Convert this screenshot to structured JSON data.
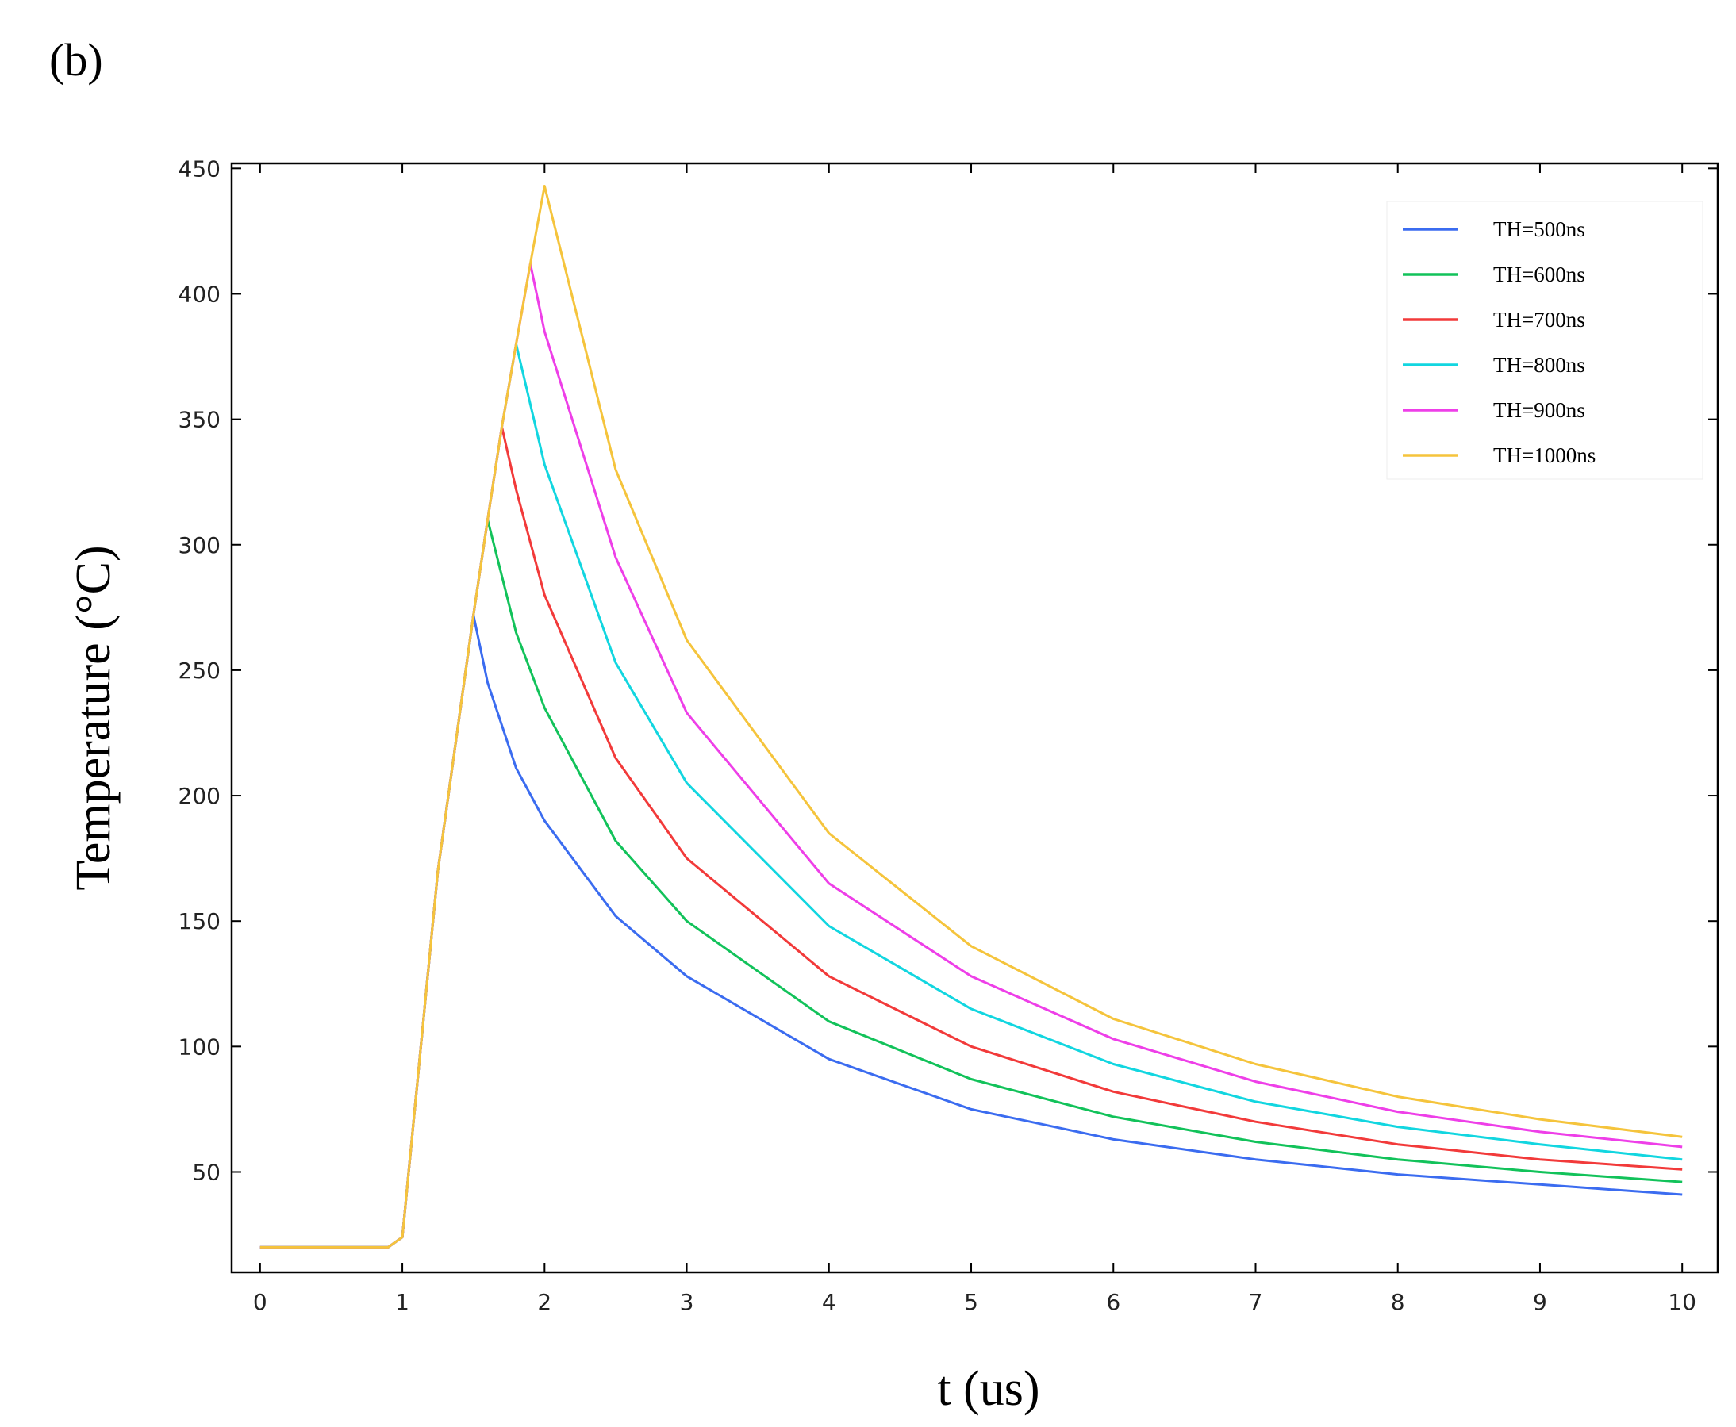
{
  "panel_label": "(b)",
  "chart_data": {
    "type": "line",
    "title": "",
    "xlabel": "t (us)",
    "ylabel": "Temperature (°C)",
    "xlim": [
      -0.2,
      10.25
    ],
    "ylim": [
      10,
      452
    ],
    "x_ticks": [
      0,
      1,
      2,
      3,
      4,
      5,
      6,
      7,
      8,
      9,
      10
    ],
    "y_ticks": [
      50,
      100,
      150,
      200,
      250,
      300,
      350,
      400,
      450
    ],
    "x_tick_labels": [
      "0",
      "1",
      "2",
      "3",
      "4",
      "5",
      "6",
      "7",
      "8",
      "9",
      "10"
    ],
    "y_tick_labels": [
      "50",
      "100",
      "150",
      "200",
      "250",
      "300",
      "350",
      "400",
      "450"
    ],
    "grid": false,
    "legend_position": "top-right",
    "series": [
      {
        "name": "TH=500ns",
        "color": "#3b6cf0",
        "x": [
          0,
          0.9,
          1.0,
          1.25,
          1.5,
          1.6,
          1.8,
          2.0,
          2.5,
          3.0,
          4.0,
          5.0,
          6.0,
          7.0,
          8.0,
          9.0,
          10.0
        ],
        "y": [
          20,
          20,
          24,
          170,
          272,
          245,
          211,
          190,
          152,
          128,
          95,
          75,
          63,
          55,
          49,
          45,
          41
        ]
      },
      {
        "name": "TH=600ns",
        "color": "#12c25a",
        "x": [
          0,
          0.9,
          1.0,
          1.25,
          1.5,
          1.6,
          1.8,
          2.0,
          2.5,
          3.0,
          4.0,
          5.0,
          6.0,
          7.0,
          8.0,
          9.0,
          10.0
        ],
        "y": [
          20,
          20,
          24,
          170,
          272,
          310,
          265,
          235,
          182,
          150,
          110,
          87,
          72,
          62,
          55,
          50,
          46
        ]
      },
      {
        "name": "TH=700ns",
        "color": "#f23a3a",
        "x": [
          0,
          0.9,
          1.0,
          1.25,
          1.5,
          1.6,
          1.7,
          1.8,
          2.0,
          2.5,
          3.0,
          4.0,
          5.0,
          6.0,
          7.0,
          8.0,
          9.0,
          10.0
        ],
        "y": [
          20,
          20,
          24,
          170,
          272,
          310,
          347,
          322,
          280,
          215,
          175,
          128,
          100,
          82,
          70,
          61,
          55,
          51
        ]
      },
      {
        "name": "TH=800ns",
        "color": "#12d6e0",
        "x": [
          0,
          0.9,
          1.0,
          1.25,
          1.5,
          1.6,
          1.7,
          1.8,
          1.9,
          2.0,
          2.5,
          3.0,
          4.0,
          5.0,
          6.0,
          7.0,
          8.0,
          9.0,
          10.0
        ],
        "y": [
          20,
          20,
          24,
          170,
          272,
          310,
          347,
          380,
          356,
          332,
          253,
          205,
          148,
          115,
          93,
          78,
          68,
          61,
          55
        ]
      },
      {
        "name": "TH=900ns",
        "color": "#ee3fe8",
        "x": [
          0,
          0.9,
          1.0,
          1.25,
          1.5,
          1.6,
          1.7,
          1.8,
          1.9,
          2.0,
          2.5,
          3.0,
          4.0,
          5.0,
          6.0,
          7.0,
          8.0,
          9.0,
          10.0
        ],
        "y": [
          20,
          20,
          24,
          170,
          272,
          310,
          347,
          380,
          412,
          385,
          295,
          233,
          165,
          128,
          103,
          86,
          74,
          66,
          60
        ]
      },
      {
        "name": "TH=1000ns",
        "color": "#f5c43c",
        "x": [
          0,
          0.9,
          1.0,
          1.25,
          1.5,
          1.6,
          1.7,
          1.8,
          1.9,
          2.0,
          2.5,
          3.0,
          4.0,
          5.0,
          6.0,
          7.0,
          8.0,
          9.0,
          10.0
        ],
        "y": [
          20,
          20,
          24,
          170,
          272,
          310,
          347,
          380,
          412,
          443,
          330,
          262,
          185,
          140,
          111,
          93,
          80,
          71,
          64
        ]
      }
    ]
  }
}
